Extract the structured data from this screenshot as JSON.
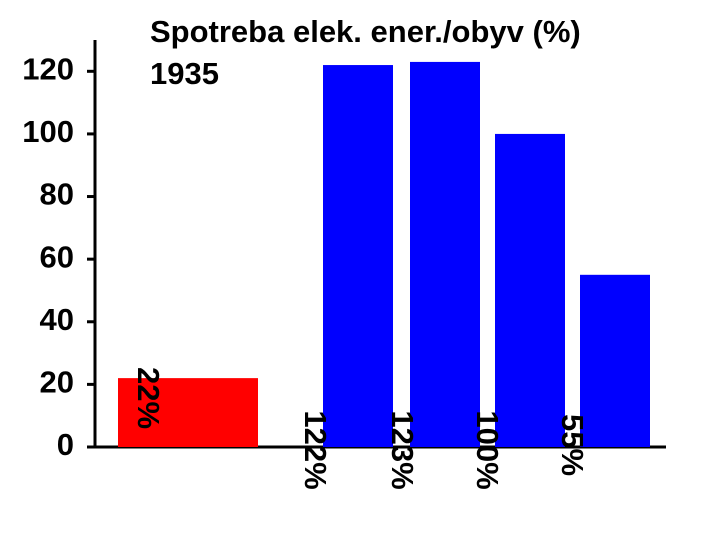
{
  "chart_data": {
    "type": "bar",
    "title": "Spotreba elek. ener./obyv (%)",
    "subtitle": "1935",
    "categories": [
      null,
      null,
      null,
      null,
      null
    ],
    "values": [
      22,
      122,
      123,
      100,
      55
    ],
    "value_labels": [
      "22%",
      "122%",
      "123%",
      "100%",
      "55%"
    ],
    "colors": [
      "#ff0000",
      "#0000ff",
      "#0000ff",
      "#0000ff",
      "#0000ff"
    ],
    "ylim": [
      0,
      130
    ],
    "yticks": [
      0,
      20,
      40,
      60,
      80,
      100,
      120
    ]
  }
}
